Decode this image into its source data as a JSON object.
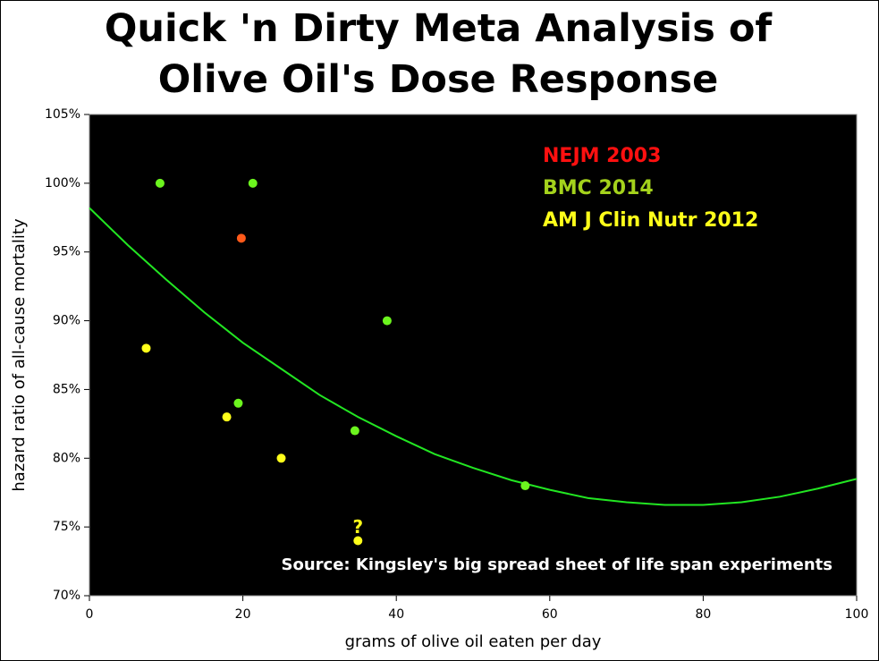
{
  "chart_data": {
    "type": "scatter",
    "title": "Quick 'n Dirty Meta Analysis of Olive Oil's Dose Response",
    "x_label": "grams of olive oil eaten per day",
    "y_label": "hazard ratio of all-cause mortality",
    "xlim": [
      0,
      100
    ],
    "xticks": [
      0,
      20,
      40,
      60,
      80,
      100
    ],
    "ylim": [
      70,
      105
    ],
    "yticks": [
      {
        "value": 70,
        "label": "70%"
      },
      {
        "value": 75,
        "label": "75%"
      },
      {
        "value": 80,
        "label": "80%"
      },
      {
        "value": 85,
        "label": "85%"
      },
      {
        "value": 90,
        "label": "90%"
      },
      {
        "value": 95,
        "label": "95%"
      },
      {
        "value": 100,
        "label": "100%"
      },
      {
        "value": 105,
        "label": "105%"
      }
    ],
    "series": [
      {
        "name": "NEJM 2003",
        "color": "#ff5a1a",
        "legend_color": "#ff1010",
        "x": [
          19.8
        ],
        "values": [
          96
        ]
      },
      {
        "name": "BMC 2014",
        "color": "#6cf51e",
        "legend_color": "#a4d21c",
        "x": [
          9.2,
          21.3,
          38.8,
          19.4,
          34.6,
          56.8
        ],
        "values": [
          100,
          100,
          90,
          84,
          82,
          78
        ]
      },
      {
        "name": "AM J Clin Nutr 2012",
        "color": "#ffff1a",
        "legend_color": "#ffff1a",
        "x": [
          7.4,
          17.9,
          25,
          35
        ],
        "values": [
          88,
          83,
          80,
          74
        ]
      }
    ],
    "fit": {
      "color": "#22e622",
      "x": [
        0,
        5,
        10,
        15,
        20,
        25,
        30,
        35,
        40,
        45,
        50,
        55,
        60,
        65,
        70,
        75,
        77,
        80,
        85,
        90,
        95,
        100
      ],
      "values": [
        98.2,
        95.5,
        93.0,
        90.6,
        88.4,
        86.5,
        84.6,
        83.0,
        81.6,
        80.3,
        79.3,
        78.4,
        77.7,
        77.1,
        76.8,
        76.6,
        76.6,
        76.6,
        76.8,
        77.2,
        77.8,
        78.5
      ]
    },
    "annotation": "?",
    "source_note": "Source: Kingsley's big spread sheet of life span experiments"
  }
}
